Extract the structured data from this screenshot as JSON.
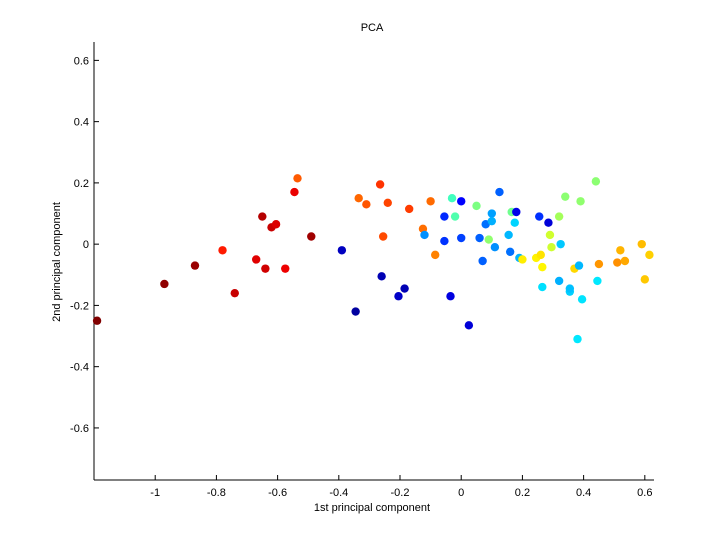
{
  "chart_data": {
    "type": "scatter",
    "title": "PCA",
    "xlabel": "1st principal component",
    "ylabel": "2nd principal component",
    "xlim": [
      -1.2,
      0.63
    ],
    "ylim": [
      -0.77,
      0.66
    ],
    "xticks": [
      -1,
      -0.8,
      -0.6,
      -0.4,
      -0.2,
      0,
      0.2,
      0.4,
      0.6
    ],
    "yticks": [
      -0.6,
      -0.4,
      -0.2,
      0,
      0.2,
      0.4,
      0.6
    ],
    "grid": false,
    "legend": "none",
    "colormap": "jet",
    "points": [
      {
        "x": -1.19,
        "y": -0.25,
        "color": "#800000"
      },
      {
        "x": -0.97,
        "y": -0.13,
        "color": "#900000"
      },
      {
        "x": -0.87,
        "y": -0.07,
        "color": "#9a0000"
      },
      {
        "x": -0.78,
        "y": -0.02,
        "color": "#ff1a00"
      },
      {
        "x": -0.74,
        "y": -0.16,
        "color": "#c80000"
      },
      {
        "x": -0.67,
        "y": -0.05,
        "color": "#e00000"
      },
      {
        "x": -0.65,
        "y": 0.09,
        "color": "#b40000"
      },
      {
        "x": -0.64,
        "y": -0.08,
        "color": "#d00000"
      },
      {
        "x": -0.62,
        "y": 0.055,
        "color": "#c80000"
      },
      {
        "x": -0.605,
        "y": 0.065,
        "color": "#dc0000"
      },
      {
        "x": -0.575,
        "y": -0.08,
        "color": "#ee0000"
      },
      {
        "x": -0.545,
        "y": 0.17,
        "color": "#ea0000"
      },
      {
        "x": -0.535,
        "y": 0.215,
        "color": "#ff5a00"
      },
      {
        "x": -0.49,
        "y": 0.025,
        "color": "#a00000"
      },
      {
        "x": -0.39,
        "y": -0.02,
        "color": "#0000c0"
      },
      {
        "x": -0.345,
        "y": -0.22,
        "color": "#0000a0"
      },
      {
        "x": -0.335,
        "y": 0.15,
        "color": "#ff6600"
      },
      {
        "x": -0.31,
        "y": 0.13,
        "color": "#ff5500"
      },
      {
        "x": -0.265,
        "y": 0.195,
        "color": "#ff3300"
      },
      {
        "x": -0.26,
        "y": -0.105,
        "color": "#0000b4"
      },
      {
        "x": -0.255,
        "y": 0.025,
        "color": "#ff4a00"
      },
      {
        "x": -0.24,
        "y": 0.135,
        "color": "#ff4400"
      },
      {
        "x": -0.205,
        "y": -0.17,
        "color": "#0000c8"
      },
      {
        "x": -0.185,
        "y": -0.145,
        "color": "#0000b4"
      },
      {
        "x": -0.17,
        "y": 0.115,
        "color": "#ff3c00"
      },
      {
        "x": -0.125,
        "y": 0.05,
        "color": "#ff6e00"
      },
      {
        "x": -0.12,
        "y": 0.03,
        "color": "#0090ff"
      },
      {
        "x": -0.1,
        "y": 0.14,
        "color": "#ff6a00"
      },
      {
        "x": -0.085,
        "y": -0.035,
        "color": "#ff8200"
      },
      {
        "x": -0.055,
        "y": 0.09,
        "color": "#0028ff"
      },
      {
        "x": -0.055,
        "y": 0.01,
        "color": "#0032ff"
      },
      {
        "x": -0.035,
        "y": -0.17,
        "color": "#0000e0"
      },
      {
        "x": -0.03,
        "y": 0.15,
        "color": "#40ffbe"
      },
      {
        "x": -0.02,
        "y": 0.09,
        "color": "#50ffae"
      },
      {
        "x": 0.0,
        "y": 0.14,
        "color": "#0000ff"
      },
      {
        "x": 0.0,
        "y": 0.02,
        "color": "#0040ff"
      },
      {
        "x": 0.025,
        "y": -0.265,
        "color": "#0000d8"
      },
      {
        "x": 0.05,
        "y": 0.125,
        "color": "#7cff82"
      },
      {
        "x": 0.06,
        "y": 0.02,
        "color": "#0060ff"
      },
      {
        "x": 0.07,
        "y": -0.055,
        "color": "#0060ff"
      },
      {
        "x": 0.08,
        "y": 0.065,
        "color": "#0070ff"
      },
      {
        "x": 0.09,
        "y": 0.015,
        "color": "#90ff6e"
      },
      {
        "x": 0.1,
        "y": 0.1,
        "color": "#00a0ff"
      },
      {
        "x": 0.1,
        "y": 0.075,
        "color": "#00b0ff"
      },
      {
        "x": 0.11,
        "y": -0.01,
        "color": "#0090ff"
      },
      {
        "x": 0.125,
        "y": 0.17,
        "color": "#0060ff"
      },
      {
        "x": 0.155,
        "y": 0.03,
        "color": "#00b8ff"
      },
      {
        "x": 0.16,
        "y": -0.025,
        "color": "#0070ff"
      },
      {
        "x": 0.165,
        "y": 0.105,
        "color": "#70ff8e"
      },
      {
        "x": 0.175,
        "y": 0.07,
        "color": "#00d4ff"
      },
      {
        "x": 0.18,
        "y": 0.105,
        "color": "#0000e8"
      },
      {
        "x": 0.19,
        "y": -0.045,
        "color": "#00b4ff"
      },
      {
        "x": 0.2,
        "y": -0.05,
        "color": "#ffee00"
      },
      {
        "x": 0.245,
        "y": -0.045,
        "color": "#fff200"
      },
      {
        "x": 0.255,
        "y": 0.09,
        "color": "#0030ff"
      },
      {
        "x": 0.26,
        "y": -0.035,
        "color": "#ffe400"
      },
      {
        "x": 0.265,
        "y": -0.075,
        "color": "#fff600"
      },
      {
        "x": 0.265,
        "y": -0.14,
        "color": "#00e0ff"
      },
      {
        "x": 0.285,
        "y": 0.07,
        "color": "#0000d8"
      },
      {
        "x": 0.29,
        "y": 0.03,
        "color": "#d0ff2e"
      },
      {
        "x": 0.295,
        "y": -0.01,
        "color": "#ceff30"
      },
      {
        "x": 0.32,
        "y": -0.12,
        "color": "#00b0ff"
      },
      {
        "x": 0.32,
        "y": 0.09,
        "color": "#a4ff5a"
      },
      {
        "x": 0.325,
        "y": 0.0,
        "color": "#00c8ff"
      },
      {
        "x": 0.34,
        "y": 0.155,
        "color": "#8cff72"
      },
      {
        "x": 0.355,
        "y": -0.155,
        "color": "#00d0ff"
      },
      {
        "x": 0.355,
        "y": -0.145,
        "color": "#00c0ff"
      },
      {
        "x": 0.37,
        "y": -0.08,
        "color": "#ffd800"
      },
      {
        "x": 0.38,
        "y": -0.31,
        "color": "#00e8ff"
      },
      {
        "x": 0.385,
        "y": -0.07,
        "color": "#00b8ff"
      },
      {
        "x": 0.39,
        "y": 0.14,
        "color": "#90ff6e"
      },
      {
        "x": 0.395,
        "y": -0.18,
        "color": "#00e4ff"
      },
      {
        "x": 0.44,
        "y": 0.205,
        "color": "#8cff72"
      },
      {
        "x": 0.445,
        "y": -0.12,
        "color": "#00e8ff"
      },
      {
        "x": 0.45,
        "y": -0.065,
        "color": "#ff9600"
      },
      {
        "x": 0.51,
        "y": -0.06,
        "color": "#ff9000"
      },
      {
        "x": 0.52,
        "y": -0.02,
        "color": "#ffb400"
      },
      {
        "x": 0.535,
        "y": -0.055,
        "color": "#ffa800"
      },
      {
        "x": 0.59,
        "y": 0.0,
        "color": "#ffbc00"
      },
      {
        "x": 0.6,
        "y": -0.115,
        "color": "#ffc800"
      },
      {
        "x": 0.615,
        "y": -0.035,
        "color": "#ffd000"
      }
    ]
  }
}
